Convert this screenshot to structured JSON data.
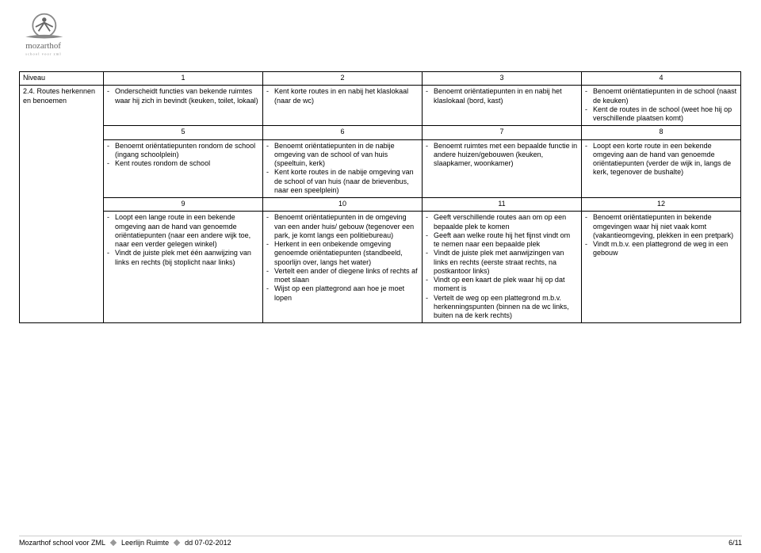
{
  "logo": {
    "name": "mozarthof",
    "tagline": "school voor zml"
  },
  "grid": {
    "levelLabel": "Niveau",
    "rowTitle": "2.4. Routes herkennen en benoemen",
    "rows": [
      {
        "nums": [
          "1",
          "2",
          "3",
          "4"
        ],
        "cells": [
          [
            "Onderscheidt functies van bekende ruimtes waar hij zich in bevindt (keuken, toilet, lokaal)"
          ],
          [
            "Kent korte routes in en nabij het klaslokaal (naar de wc)"
          ],
          [
            "Benoemt oriëntatiepunten in en nabij het klaslokaal (bord, kast)"
          ],
          [
            "Benoemt oriëntatiepunten in de school (naast de keuken)",
            "Kent de routes in de school (weet hoe hij op verschillende plaatsen komt)"
          ]
        ]
      },
      {
        "nums": [
          "5",
          "6",
          "7",
          "8"
        ],
        "cells": [
          [
            "Benoemt oriëntatiepunten rondom de school (ingang schoolplein)",
            "Kent routes rondom de school"
          ],
          [
            "Benoemt oriëntatiepunten in de nabije omgeving van de school of van huis (speeltuin, kerk)",
            "Kent korte routes in de nabije omgeving van de school of van huis (naar de brievenbus, naar een speelplein)"
          ],
          [
            "Benoemt ruimtes met een bepaalde functie in andere huizen/gebouwen (keuken, slaapkamer, woonkamer)"
          ],
          [
            "Loopt een korte route in een bekende omgeving aan de hand van genoemde oriëntatiepunten (verder de wijk in, langs de kerk, tegenover de bushalte)"
          ]
        ]
      },
      {
        "nums": [
          "9",
          "10",
          "11",
          "12"
        ],
        "cells": [
          [
            "Loopt een lange route in een bekende omgeving aan de hand van genoemde oriëntatiepunten (naar een andere wijk toe, naar een verder gelegen winkel)",
            "Vindt de juiste plek met één aanwijzing van links en rechts (bij stoplicht naar links)"
          ],
          [
            "Benoemt oriëntatiepunten in de omgeving van een ander huis/ gebouw (tegenover een park, je komt langs een politiebureau)",
            "Herkent in een onbekende omgeving genoemde oriëntatiepunten (standbeeld, spoorlijn over, langs het water)",
            "Vertelt een ander of diegene links of rechts af moet slaan",
            "Wijst op een plattegrond aan hoe je moet lopen"
          ],
          [
            "Geeft verschillende routes aan om op een bepaalde plek te komen",
            "Geeft aan welke route hij het fijnst vindt om te nemen naar een bepaalde plek",
            "Vindt de juiste plek met aanwijzingen van links en rechts (eerste straat rechts, na postkantoor links)",
            "Vindt op een kaart de plek waar hij op dat moment is",
            "Vertelt de weg op een plattegrond m.b.v. herkenningspunten (binnen na de wc links, buiten na de kerk rechts)"
          ],
          [
            "Benoemt oriëntatiepunten in bekende omgevingen waar hij niet vaak komt (vakantieomgeving, plekken in een pretpark)",
            "Vindt m.b.v. een plattegrond de weg in een gebouw"
          ]
        ]
      }
    ]
  },
  "footer": {
    "left1": "Mozarthof school voor ZML",
    "left2": "Leerlijn Ruimte",
    "left3": "dd 07-02-2012",
    "page": "6/11"
  }
}
